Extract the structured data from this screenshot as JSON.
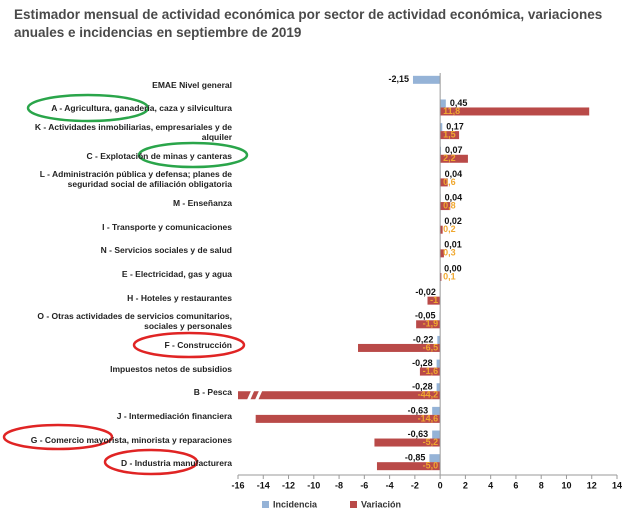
{
  "chart_data": {
    "type": "barh",
    "title": "Estimador mensual de actividad económica por sector de actividad económica, variaciones anuales e incidencias en septiembre de 2019",
    "categories": [
      "EMAE Nivel general",
      "A - Agricultura, ganadería, caza y silvicultura",
      "K - Actividades inmobiliarias, empresariales y de alquiler",
      "C - Explotación de minas y canteras",
      "L - Administración pública y defensa; planes de seguridad social de afiliación obligatoria",
      "M - Enseñanza",
      "I - Transporte y comunicaciones",
      "N - Servicios sociales y de salud",
      "E - Electricidad, gas y agua",
      "H - Hoteles y restaurantes",
      "O - Otras actividades de servicios comunitarios, sociales y personales",
      "F - Construcción",
      "Impuestos netos de subsidios",
      "B - Pesca",
      "J - Intermediación financiera",
      "G - Comercio mayorista, minorista y reparaciones",
      "D - Industria manufacturera"
    ],
    "series": [
      {
        "name": "Incidencia",
        "color": "#95b3d7",
        "values": [
          -2.15,
          0.45,
          0.17,
          0.07,
          0.04,
          0.04,
          0.02,
          0.01,
          0.0,
          -0.02,
          -0.05,
          -0.22,
          -0.28,
          -0.28,
          -0.63,
          -0.63,
          -0.85
        ],
        "value_labels": [
          "-2,15",
          "0,45",
          "0,17",
          "0,07",
          "0,04",
          "0,04",
          "0,02",
          "0,01",
          "0,00",
          "-0,02",
          "-0,05",
          "-0,22",
          "-0,28",
          "-0,28",
          "-0,63",
          "-0,63",
          "-0,85"
        ]
      },
      {
        "name": "Variación",
        "color": "#b94a48",
        "values": [
          null,
          11.8,
          1.5,
          2.2,
          0.6,
          0.8,
          0.2,
          0.3,
          0.1,
          -1,
          -1.9,
          -6.5,
          -1.6,
          -44.2,
          -14.6,
          -5.2,
          -5.0
        ],
        "value_labels": [
          null,
          "11,8",
          "1,5",
          "2,2",
          "0,6",
          "0,8",
          "0,2",
          "0,3",
          "0,1",
          "-1",
          "-1,9",
          "-6,5",
          "-1,6",
          "-44,2",
          "-14,6",
          "-5,2",
          "-5,0"
        ]
      }
    ],
    "xlim": [
      -16,
      14
    ],
    "xticks": [
      -16,
      -14,
      -12,
      -10,
      -8,
      -6,
      -4,
      -2,
      0,
      2,
      4,
      6,
      8,
      10,
      12,
      14
    ]
  }
}
